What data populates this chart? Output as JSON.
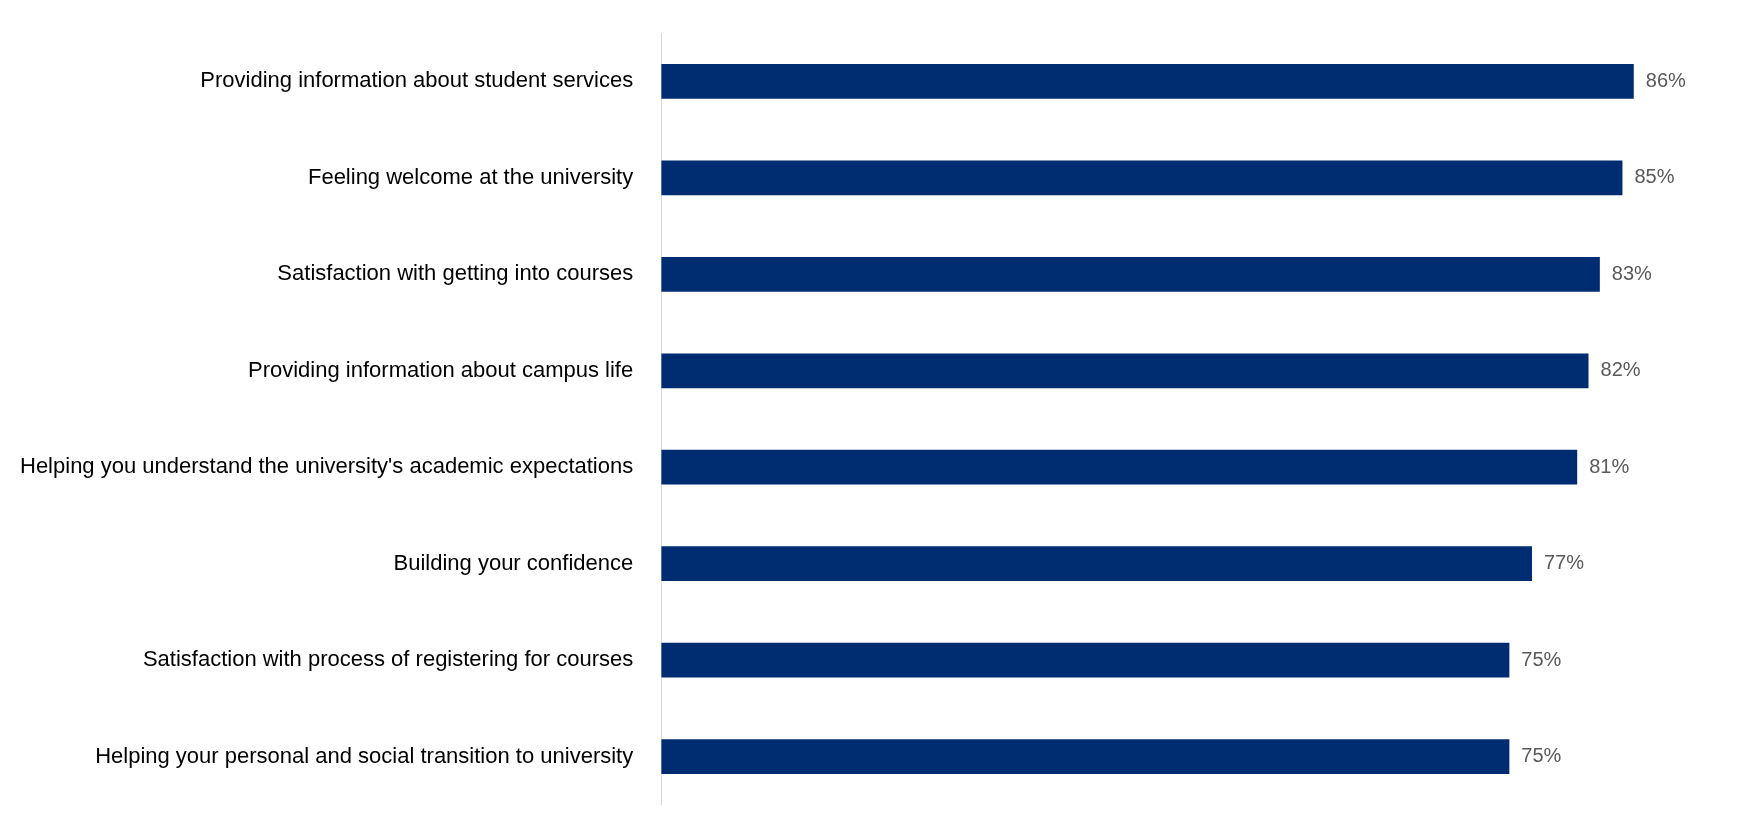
{
  "chart_data": {
    "type": "bar",
    "orientation": "horizontal",
    "categories": [
      "Providing information about student services",
      "Feeling welcome at the university",
      "Satisfaction with getting into courses",
      "Providing information about campus life",
      "Helping you understand the university's academic expectations",
      "Building your confidence",
      "Satisfaction with process of registering for courses",
      "Helping your personal and social transition to university"
    ],
    "values": [
      86,
      85,
      83,
      82,
      81,
      77,
      75,
      75
    ],
    "value_labels": [
      "86%",
      "85%",
      "83%",
      "82%",
      "81%",
      "77%",
      "75%",
      "75%"
    ],
    "color": "#002d72",
    "tick_labels": "y",
    "grid": false,
    "legend": false
  }
}
